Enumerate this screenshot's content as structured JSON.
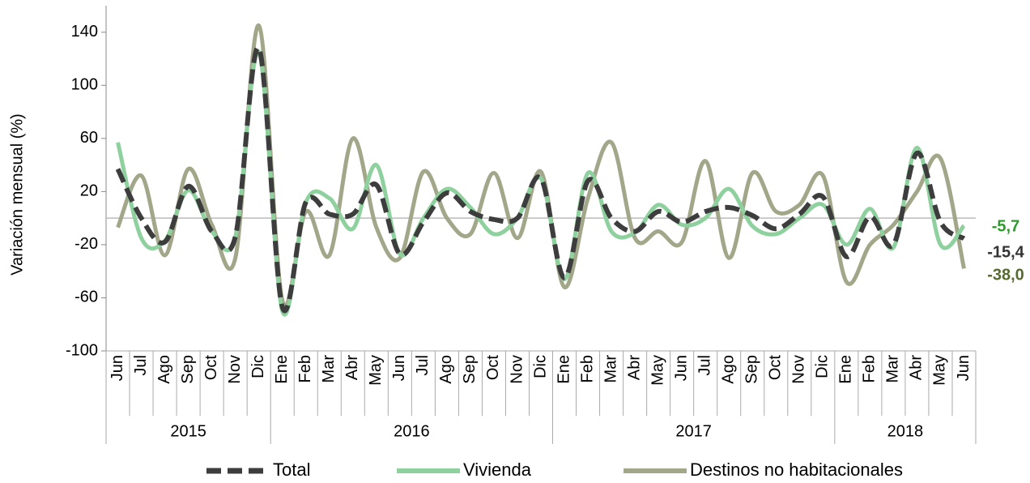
{
  "chart_data": {
    "type": "line",
    "y_label": "Variación mensual (%)",
    "categories": [
      "Jun",
      "Jul",
      "Ago",
      "Sep",
      "Oct",
      "Nov",
      "Dic",
      "Ene",
      "Feb",
      "Mar",
      "Abr",
      "May",
      "Jun",
      "Jul",
      "Ago",
      "Sep",
      "Oct",
      "Nov",
      "Dic",
      "Ene",
      "Feb",
      "Mar",
      "Abr",
      "May",
      "Jun",
      "Jul",
      "Ago",
      "Sep",
      "Oct",
      "Nov",
      "Dic",
      "Ene",
      "Feb",
      "Mar",
      "Abr",
      "May",
      "Jun"
    ],
    "category_groups": [
      {
        "label": "2015",
        "count": 7
      },
      {
        "label": "2016",
        "count": 12
      },
      {
        "label": "2017",
        "count": 12
      },
      {
        "label": "2018",
        "count": 6
      }
    ],
    "ylim": [
      -100,
      160
    ],
    "yticks": [
      -100,
      -60,
      -20,
      20,
      60,
      100,
      140
    ],
    "grid": false,
    "legend": "bottom",
    "series": [
      {
        "name": "Destinos no habitacionales",
        "color": "#a3a78a",
        "label_color": "#556b2f",
        "dash": false,
        "last_label": "-38,0",
        "values": [
          -7,
          32,
          -28,
          37,
          -5,
          -30,
          145,
          -62,
          5,
          -28,
          60,
          -7,
          -30,
          35,
          0,
          -12,
          34,
          -15,
          35,
          -52,
          15,
          57,
          -15,
          -10,
          -18,
          43,
          -30,
          34,
          5,
          10,
          32,
          -48,
          -20,
          -5,
          20,
          45,
          -38.0
        ]
      },
      {
        "name": "Vivienda",
        "color": "#8fd19e",
        "label_color": "#2e9a2e",
        "dash": false,
        "last_label": "-5,7",
        "values": [
          57,
          -15,
          -17,
          21,
          -10,
          -14,
          125,
          -70,
          12,
          15,
          -8,
          40,
          -27,
          0,
          22,
          8,
          -12,
          0,
          30,
          -46,
          34,
          -10,
          -11,
          10,
          -5,
          0,
          22,
          -6,
          -12,
          0,
          10,
          -20,
          7,
          -22,
          53,
          -20,
          -5.7
        ]
      },
      {
        "name": "Total",
        "color": "#3d3d3d",
        "label_color": "#333333",
        "dash": true,
        "last_label": "-15,4",
        "values": [
          37,
          0,
          -18,
          24,
          -10,
          -14,
          128,
          -67,
          12,
          3,
          3,
          25,
          -27,
          -3,
          19,
          5,
          -1,
          0,
          30,
          -45,
          28,
          0,
          -10,
          5,
          -3,
          5,
          8,
          2,
          -8,
          3,
          16,
          -29,
          1,
          -20,
          49,
          -3,
          -15.4
        ]
      }
    ]
  }
}
